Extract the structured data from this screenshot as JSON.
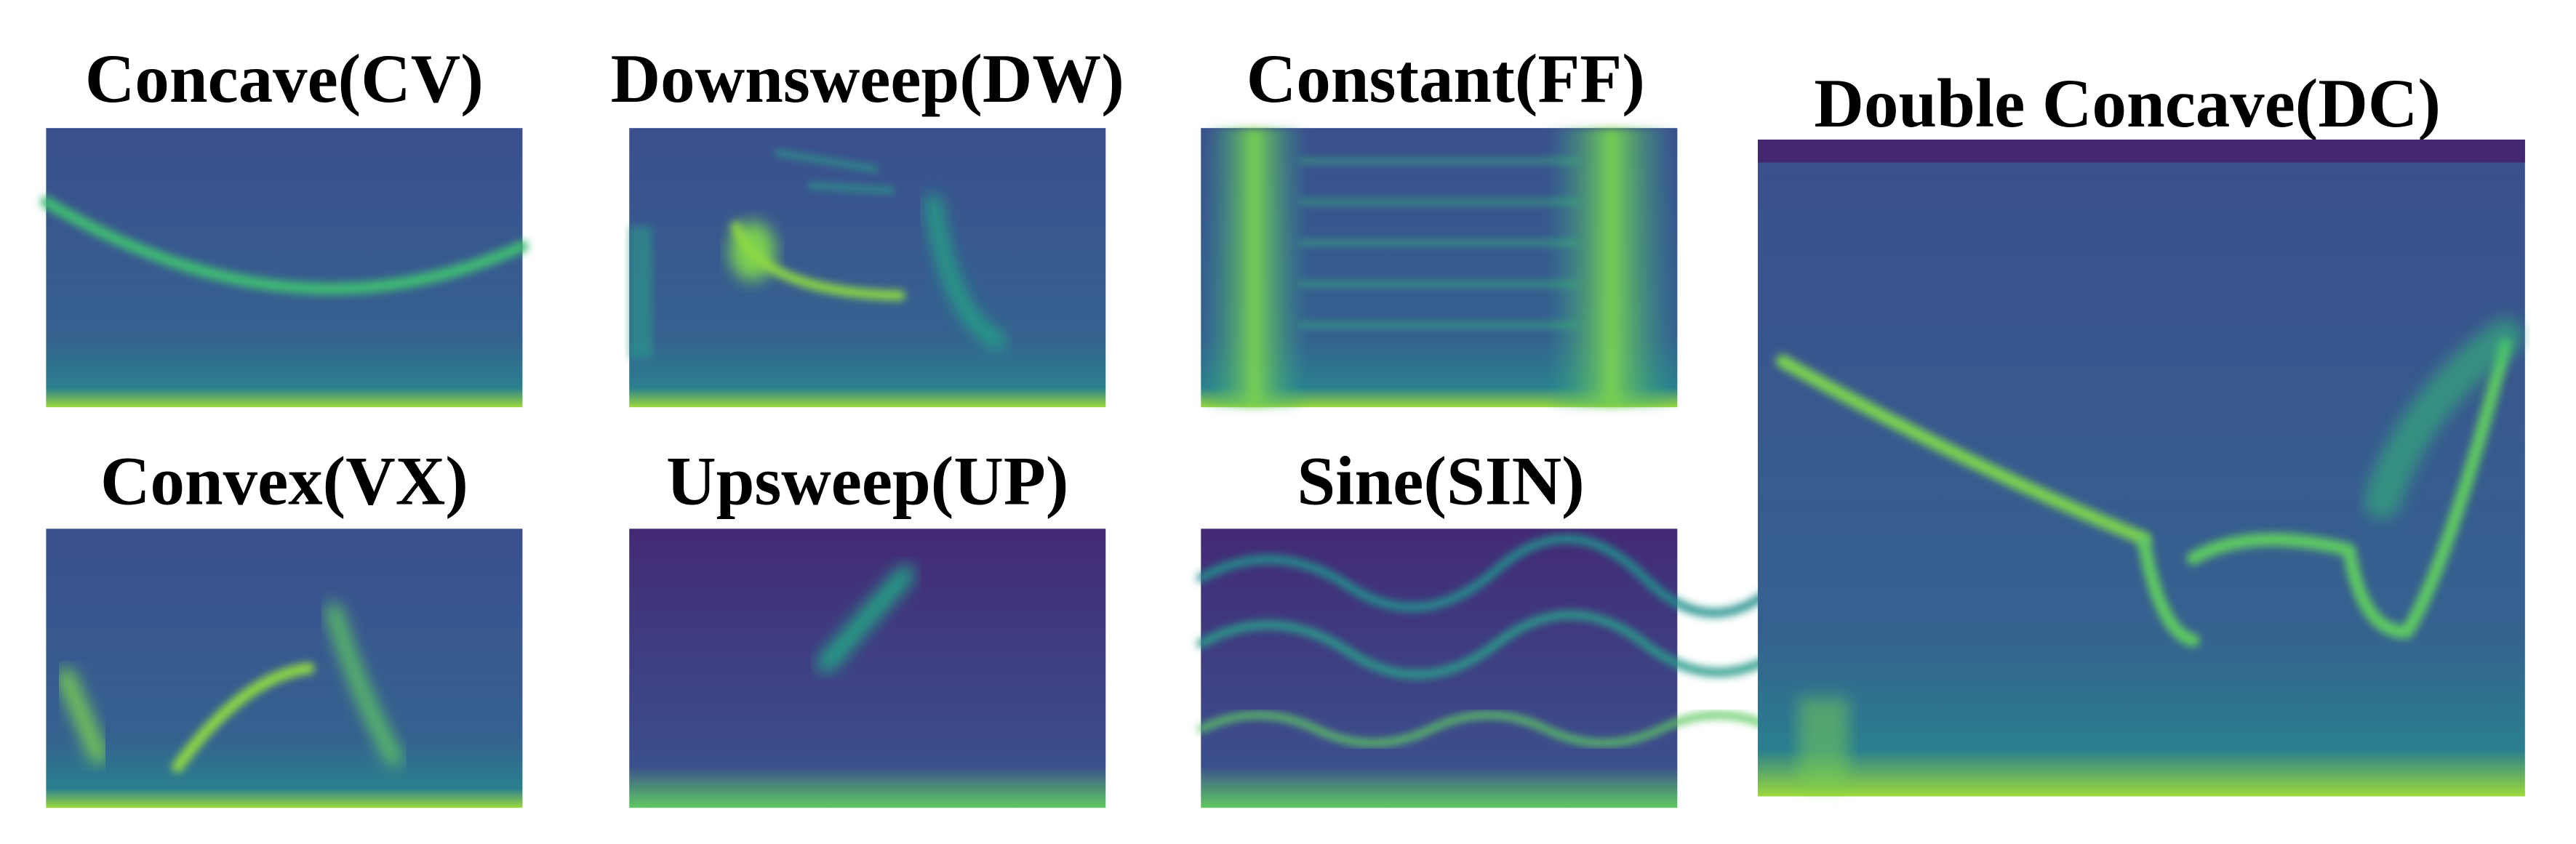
{
  "panels": [
    {
      "title": "Concave(CV)"
    },
    {
      "title": "Downsweep(DW)"
    },
    {
      "title": "Constant(FF)"
    },
    {
      "title": "Convex(VX)"
    },
    {
      "title": "Upsweep(UP)"
    },
    {
      "title": "Sine(SIN)"
    },
    {
      "title": "Double Concave(DC)"
    }
  ]
}
